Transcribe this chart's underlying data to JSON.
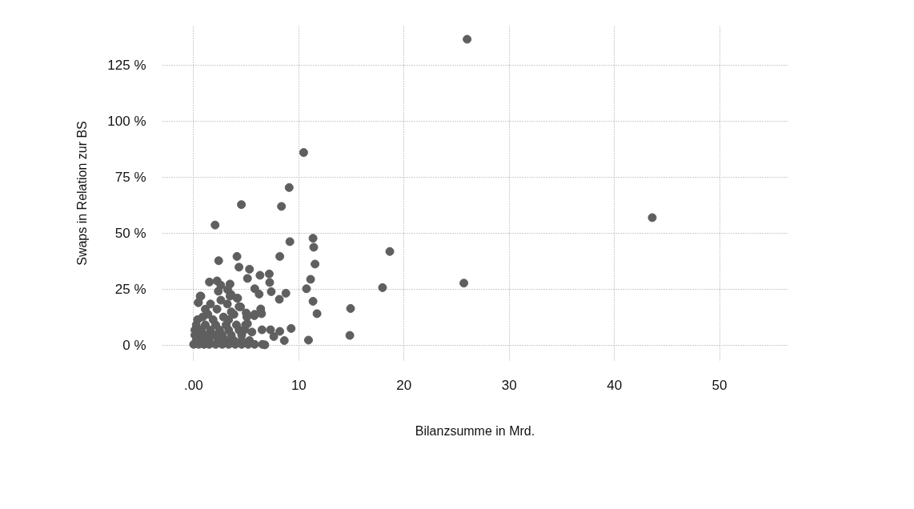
{
  "chart_data": {
    "type": "scatter",
    "xlabel": "Bilanzsumme in Mrd.",
    "ylabel": "Swaps in Relation zur BS",
    "xlim": [
      -3,
      56.5
    ],
    "ylim": [
      -6.6,
      142.5
    ],
    "xticks": [
      {
        "value": 0,
        "label": ".00"
      },
      10,
      20,
      30,
      40,
      50
    ],
    "yticks": [
      {
        "value": 0,
        "label": "0 %"
      },
      {
        "value": 25,
        "label": "25 %"
      },
      {
        "value": 50,
        "label": "50 %"
      },
      {
        "value": 75,
        "label": "75 %"
      },
      {
        "value": 100,
        "label": "100 %"
      },
      {
        "value": 125,
        "label": "125 %"
      }
    ],
    "grid": true,
    "marker": "circle",
    "series": [
      {
        "color": "#5f5f5f",
        "x": [
          26.0,
          10.46,
          9.08,
          4.54,
          8.35,
          2.04,
          43.6,
          11.35,
          11.42,
          9.15,
          18.65,
          11.54,
          8.19,
          4.12,
          2.38,
          4.31,
          5.31,
          7.19,
          6.31,
          5.12,
          7.23,
          11.12,
          10.73,
          17.96,
          25.69,
          1.5,
          2.23,
          2.58,
          3.46,
          3.23,
          2.35,
          3.54,
          5.81,
          6.23,
          7.38,
          8.77,
          8.15,
          0.69,
          0.46,
          4.19,
          11.35,
          14.92,
          11.73,
          14.85,
          10.92,
          9.27,
          8.62,
          8.19,
          7.62,
          7.31,
          6.5,
          5.54,
          6.77,
          6.38,
          6.46,
          5.77,
          5.0,
          4.46,
          5.12,
          4.85,
          0.62,
          0.44,
          1.6,
          2.59,
          3.46,
          4.12,
          4.32,
          2.22,
          1.11,
          3.21,
          3.58,
          0.37,
          1.85,
          3.33,
          0.86,
          2.84,
          5.06,
          1.36,
          3.83,
          5.8,
          0.25,
          1.11,
          2.1,
          3.09,
          4.07,
          4.94,
          0.12,
          0.74,
          1.6,
          2.47,
          3.33,
          4.32,
          0.12,
          0.62,
          1.23,
          1.98,
          2.72,
          3.58,
          4.57,
          0.25,
          0.86,
          1.48,
          2.35,
          3.09,
          3.83,
          4.57,
          5.31,
          0,
          0.49,
          0.99,
          1.48,
          2.1,
          2.72,
          3.33,
          3.95,
          4.57,
          5.19,
          5.8,
          6.54
        ],
        "values": [
          136.6,
          86.1,
          70.5,
          62.9,
          62.1,
          53.8,
          57.1,
          47.9,
          43.9,
          46.4,
          42.0,
          36.4,
          39.8,
          39.8,
          37.9,
          35.0,
          34.1,
          32.0,
          31.4,
          30.0,
          28.2,
          29.6,
          25.4,
          25.9,
          27.9,
          28.4,
          28.9,
          27.0,
          27.5,
          25.0,
          24.3,
          22.9,
          25.4,
          23.0,
          24.1,
          23.4,
          20.7,
          22.1,
          19.3,
          21.2,
          19.8,
          16.6,
          14.3,
          4.6,
          2.5,
          7.7,
          2.3,
          6.4,
          4.1,
          7.1,
          7.1,
          6.1,
          0.4,
          16.4,
          14.3,
          13.4,
          14.6,
          17.3,
          9.8,
          7.1,
          22.1,
          19.2,
          18.6,
          20.3,
          22.1,
          21.2,
          17.4,
          16.3,
          16.3,
          18.6,
          15.1,
          11.6,
          11.6,
          11.6,
          12.8,
          12.8,
          12.8,
          14.0,
          14.0,
          14.0,
          9.3,
          9.3,
          9.3,
          9.3,
          9.3,
          9.3,
          7.0,
          7.0,
          7.0,
          7.0,
          7.0,
          7.0,
          4.7,
          4.7,
          4.7,
          4.7,
          4.7,
          4.7,
          4.7,
          2.3,
          2.3,
          2.3,
          2.3,
          2.3,
          2.3,
          2.3,
          2.3,
          0.6,
          0.6,
          0.6,
          0.6,
          0.6,
          0.6,
          0.6,
          0.6,
          0.6,
          0.6,
          0.6,
          0.6
        ]
      }
    ]
  }
}
